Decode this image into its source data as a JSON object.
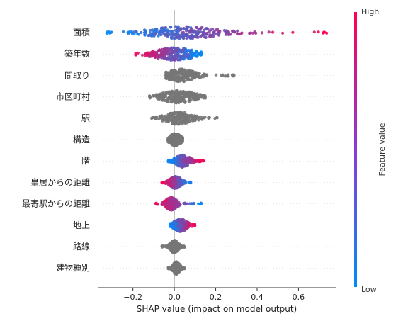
{
  "chart_data": {
    "type": "scatter",
    "subtype": "shap-beeswarm",
    "xlabel": "SHAP value (impact on model output)",
    "xticks": [
      -0.2,
      0.0,
      0.2,
      0.4,
      0.6
    ],
    "xtick_labels": [
      "−0.2",
      "0.0",
      "0.2",
      "0.4",
      "0.6"
    ],
    "xlim": [
      -0.37,
      0.78
    ],
    "zero_line": 0.0,
    "grid": false,
    "colorbar": {
      "label": "Feature value",
      "high_label": "High",
      "low_label": "Low",
      "low_color": "#008bfb",
      "high_color": "#ff0052"
    },
    "neutral_color": "#777777",
    "features": [
      {
        "name": "面積",
        "min": -0.33,
        "max": 0.74,
        "colored": true,
        "color_mode": "low-left-high-right",
        "spread": 0.12,
        "bulk": [
          -0.05,
          0.15
        ]
      },
      {
        "name": "築年数",
        "min": -0.19,
        "max": 0.13,
        "colored": true,
        "color_mode": "high-left-low-right",
        "spread": 0.07,
        "bulk": [
          -0.08,
          0.08
        ]
      },
      {
        "name": "間取り",
        "min": -0.04,
        "max": 0.29,
        "colored": false,
        "spread": 0.05,
        "bulk": [
          -0.02,
          0.08
        ]
      },
      {
        "name": "市区町村",
        "min": -0.12,
        "max": 0.15,
        "colored": false,
        "spread": 0.06,
        "bulk": [
          -0.06,
          0.1
        ]
      },
      {
        "name": "駅",
        "min": -0.11,
        "max": 0.21,
        "colored": false,
        "spread": 0.05,
        "bulk": [
          -0.07,
          0.11
        ]
      },
      {
        "name": "構造",
        "min": -0.03,
        "max": 0.04,
        "colored": false,
        "spread": 0.02,
        "bulk": [
          -0.02,
          0.03
        ]
      },
      {
        "name": "階",
        "min": -0.03,
        "max": 0.14,
        "colored": true,
        "color_mode": "low-left-high-right",
        "spread": 0.025,
        "bulk": [
          -0.02,
          0.1
        ]
      },
      {
        "name": "皇居からの距離",
        "min": -0.06,
        "max": 0.08,
        "colored": true,
        "color_mode": "high-left-low-right",
        "spread": 0.02,
        "bulk": [
          -0.04,
          0.05
        ]
      },
      {
        "name": "最寄駅からの距離",
        "min": -0.09,
        "max": 0.13,
        "colored": true,
        "color_mode": "high-left-low-right",
        "spread": 0.02,
        "bulk": [
          -0.06,
          0.03
        ]
      },
      {
        "name": "地上",
        "min": -0.02,
        "max": 0.1,
        "colored": true,
        "color_mode": "low-left-high-right",
        "spread": 0.025,
        "bulk": [
          -0.02,
          0.08
        ]
      },
      {
        "name": "路線",
        "min": -0.06,
        "max": 0.05,
        "colored": false,
        "spread": 0.015,
        "bulk": [
          -0.03,
          0.03
        ]
      },
      {
        "name": "建物種別",
        "min": -0.03,
        "max": 0.05,
        "colored": false,
        "spread": 0.012,
        "bulk": [
          -0.02,
          0.04
        ]
      }
    ]
  }
}
